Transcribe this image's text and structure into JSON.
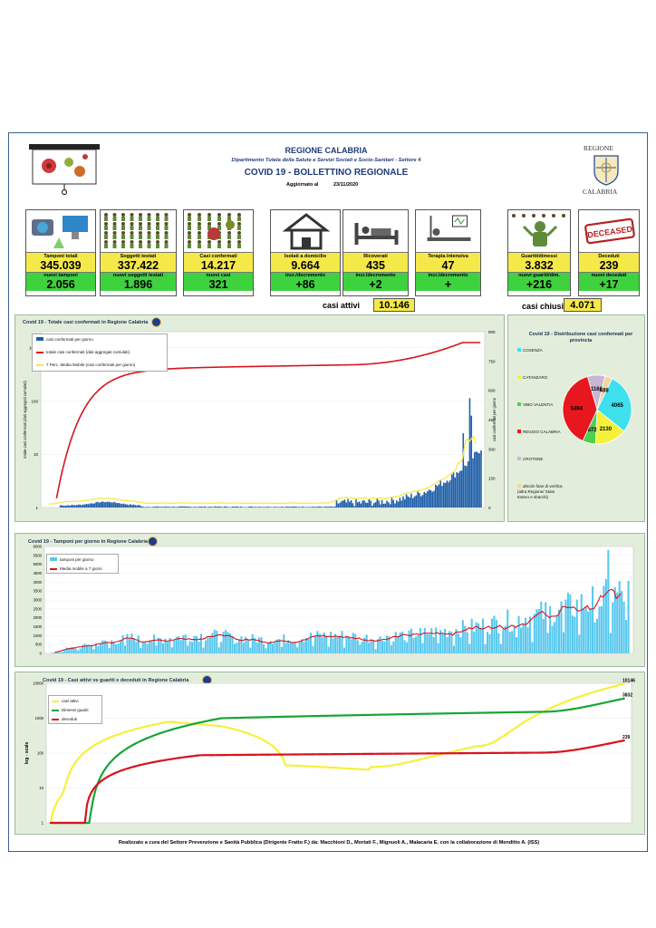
{
  "header": {
    "region": "REGIONE CALABRIA",
    "department": "Dipartimento Tutela della Salute e Servizi Sociali e Socio-Sanitari - Settore 4",
    "title": "COVID 19 - BOLLETTINO REGIONALE",
    "updated_label": "Aggiornato al",
    "updated_date": "23/11/2020",
    "logo_top": "REGIONE",
    "logo_bottom": "CALABRIA"
  },
  "cards": [
    {
      "label": "Tamponi totali",
      "value": "345.039",
      "sub_label": "nuovi tamponi",
      "sub_value": "2.056",
      "icon": "lab-equipment-icon"
    },
    {
      "label": "Soggetti testati",
      "value": "337.422",
      "sub_label": "nuovi soggetti testati",
      "sub_value": "1.896",
      "icon": "people-grid-icon"
    },
    {
      "label": "Casi confermati",
      "value": "14.217",
      "sub_label": "nuovi casi",
      "sub_value": "321",
      "icon": "virus-people-icon"
    },
    {
      "label": "Isolati a domicilio",
      "value": "9.664",
      "sub_label": "incr./decremento",
      "sub_value": "+86",
      "icon": "house-icon"
    },
    {
      "label": "Ricoverati",
      "value": "435",
      "sub_label": "incr./decremento",
      "sub_value": "+2",
      "icon": "hospital-bed-icon"
    },
    {
      "label": "Terapia intensiva",
      "value": "47",
      "sub_label": "incr./decremento",
      "sub_value": "+",
      "icon": "intensive-care-icon"
    },
    {
      "label": "Guariti/dimessi",
      "value": "3.832",
      "sub_label": "nuovi guariti/dim.",
      "sub_value": "+216",
      "icon": "recovered-icon"
    },
    {
      "label": "Deceduti",
      "value": "239",
      "sub_label": "nuovi deceduti",
      "sub_value": "+17",
      "icon": "deceased-stamp-icon"
    }
  ],
  "deceased_stamp": "DECEASED",
  "summary": {
    "active_label": "casi attivi",
    "active_value": "10.146",
    "closed_label": "casi chiusi",
    "closed_value": "4.071"
  },
  "colors": {
    "yellow": "#f5e94a",
    "green": "#3fd23f",
    "panel": "#e2eedb",
    "bar_blue": "#1f5fa8",
    "red": "#d8141e",
    "light_blue": "#57c8ef"
  },
  "chart_data": [
    {
      "type": "bar",
      "title": "Covid 19 - Totale casi confermati in Regione Calabria",
      "ylabel": "totale casi confermati (dati aggregati cumulati)",
      "y2label": "casi confermati per giorno",
      "y_ticks": [
        "1",
        "10",
        "100",
        "1000"
      ],
      "y2_ticks": [
        "0",
        "150",
        "300",
        "450",
        "600",
        "750",
        "900"
      ],
      "scale": "log",
      "series": [
        {
          "name": "casi confermati per giorno",
          "color": "#1f5fa8"
        },
        {
          "name": "totale casi confermati (dati aggregati cumulati)",
          "color": "#d8141e"
        },
        {
          "name": "7 Perc. Media Mobile (casi confermati per giorno)",
          "color": "#f5e94a"
        }
      ]
    },
    {
      "type": "pie",
      "title": "Covid 19 - Distribuzione casi confermati per provincia",
      "slices": [
        {
          "name": "COSENZA",
          "value": 4065,
          "color": "#3fe0ee"
        },
        {
          "name": "CATANZARO",
          "value": 2130,
          "color": "#f5f13a"
        },
        {
          "name": "VIBO VALENTIA",
          "value": 872,
          "color": "#4fcf4f"
        },
        {
          "name": "REGGIO CALABRIA",
          "value": 5494,
          "color": "#e8161e"
        },
        {
          "name": "CROTONE",
          "value": 1168,
          "color": "#c9b6d6"
        },
        {
          "name": "altro/in fase di verifica (altra Regione/ Stato Estero e sbarchi)",
          "value": 488,
          "color": "#f5d59a"
        }
      ]
    },
    {
      "type": "bar",
      "title": "Covid 19 - Tamponi per giorno in Regione Calabria",
      "y_ticks": [
        "0",
        "500",
        "1000",
        "1500",
        "2000",
        "2500",
        "3000",
        "3500",
        "4000",
        "4500",
        "5000",
        "5500",
        "6000"
      ],
      "ylim": [
        0,
        6000
      ],
      "series": [
        {
          "name": "tamponi per giorno",
          "color": "#57c8ef"
        },
        {
          "name": "Media mobile a 7 giorni",
          "color": "#d8141e"
        }
      ]
    },
    {
      "type": "line",
      "title": "Covid 19 - Casi attivi vs guariti e deceduti in Regione Calabria",
      "ylabel": "log - scale",
      "y_ticks": [
        "1",
        "10",
        "100",
        "1000",
        "10000"
      ],
      "scale": "log",
      "series": [
        {
          "name": "casi attivi",
          "color": "#f5f13a",
          "end_value": "10146"
        },
        {
          "name": "Dimessi guariti",
          "color": "#16a535",
          "end_value": "3832"
        },
        {
          "name": "deceduti",
          "color": "#d8141e",
          "end_value": "239"
        }
      ]
    }
  ],
  "footer": "Realizzato a cura del Settore Prevenzione e Sanità Pubblica (Dirigente Fratto F.) da: Macchioni D., Mortati F., Mignuoli A., Malacaria E. con la collaborazione di Menditto A. (ISS)"
}
